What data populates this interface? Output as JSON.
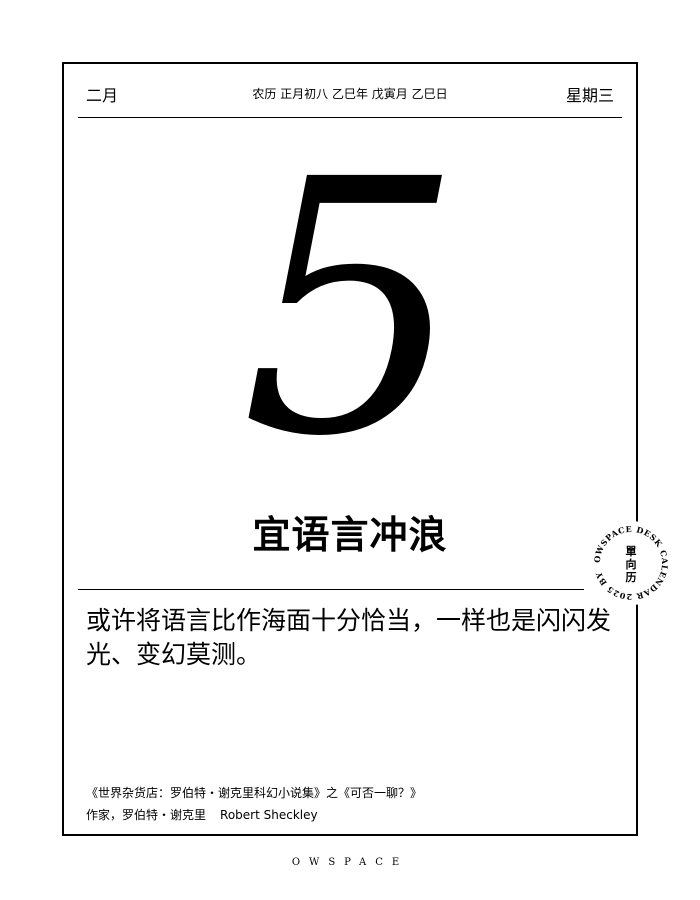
{
  "header": {
    "month": "二月",
    "lunar_date": "农历 正月初八 乙巳年 戊寅月 乙巳日",
    "weekday": "星期三"
  },
  "day_number": "5",
  "suitable": "宜语言冲浪",
  "quote": "或许将语言比作海面十分恰当，一样也是闪闪发光、变幻莫测。",
  "source": "《世界杂货店：罗伯特・谢克里科幻小说集》之《可否一聊？》",
  "author": {
    "cn": "作家，罗伯特・谢克里",
    "en": "Robert Sheckley"
  },
  "stamp": {
    "ring_text": "OWSPACE DESK CALENDAR 2025 BY",
    "center_text": "單向历"
  },
  "footer_brand": "OWSPACE"
}
